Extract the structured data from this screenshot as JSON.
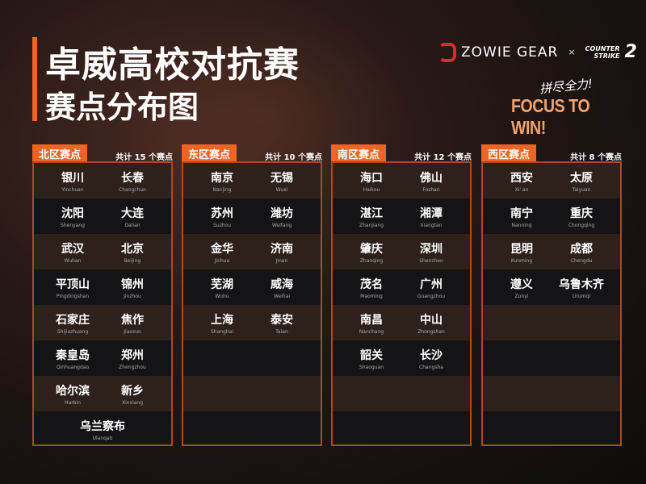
{
  "title": "卓威高校对抗赛",
  "subtitle": "赛点分布图",
  "brand": {
    "zowie": "ZOWIE GEAR",
    "x": "×",
    "cs_line1": "COUNTER",
    "cs_line2": "STRIKE",
    "cs_num": "2",
    "slogan_cn": "拼尽全力!",
    "slogan": "FOCUS TO WIN!",
    "accent": "#f06423"
  },
  "regions": [
    {
      "name": "北区赛点",
      "count": "共计 15 个赛点",
      "cities": [
        [
          "银川",
          "Yinchuan"
        ],
        [
          "长春",
          "Changchun"
        ],
        [
          "沈阳",
          "Shenyang"
        ],
        [
          "大连",
          "Dalian"
        ],
        [
          "武汉",
          "Wuhan"
        ],
        [
          "北京",
          "Beijing"
        ],
        [
          "平顶山",
          "Pingdingshan"
        ],
        [
          "锦州",
          "Jinzhou"
        ],
        [
          "石家庄",
          "Shijiazhuang"
        ],
        [
          "焦作",
          "Jiaozuo"
        ],
        [
          "秦皇岛",
          "Qinhuangdao"
        ],
        [
          "郑州",
          "Zhengzhou"
        ],
        [
          "哈尔滨",
          "Harbin"
        ],
        [
          "新乡",
          "Xinxiang"
        ],
        [
          "乌兰察布",
          "Ulanqab"
        ]
      ]
    },
    {
      "name": "东区赛点",
      "count": "共计 10 个赛点",
      "cities": [
        [
          "南京",
          "Nanjing"
        ],
        [
          "无锡",
          "Wuxi"
        ],
        [
          "苏州",
          "Suzhou"
        ],
        [
          "潍坊",
          "Weifang"
        ],
        [
          "金华",
          "Jinhua"
        ],
        [
          "济南",
          "Jinan"
        ],
        [
          "芜湖",
          "Wuhu"
        ],
        [
          "威海",
          "Weihai"
        ],
        [
          "上海",
          "Shanghai"
        ],
        [
          "泰安",
          "Taian"
        ]
      ]
    },
    {
      "name": "南区赛点",
      "count": "共计 12 个赛点",
      "cities": [
        [
          "海口",
          "Haikou"
        ],
        [
          "佛山",
          "Foshan"
        ],
        [
          "湛江",
          "Zhanjiang"
        ],
        [
          "湘潭",
          "Xiangtan"
        ],
        [
          "肇庆",
          "Zhaoqing"
        ],
        [
          "深圳",
          "Shenzhen"
        ],
        [
          "茂名",
          "Maoming"
        ],
        [
          "广州",
          "Guangzhou"
        ],
        [
          "南昌",
          "Nanchang"
        ],
        [
          "中山",
          "Zhongshan"
        ],
        [
          "韶关",
          "Shaoguan"
        ],
        [
          "长沙",
          "Changsha"
        ]
      ]
    },
    {
      "name": "西区赛点",
      "count": "共计 8 个赛点",
      "cities": [
        [
          "西安",
          "Xi' an"
        ],
        [
          "太原",
          "Taiyuan"
        ],
        [
          "南宁",
          "Nanning"
        ],
        [
          "重庆",
          "Chongqing"
        ],
        [
          "昆明",
          "Kunming"
        ],
        [
          "成都",
          "Chengdu"
        ],
        [
          "遵义",
          "Zunyi"
        ],
        [
          "乌鲁木齐",
          "Urumqi"
        ]
      ]
    }
  ]
}
